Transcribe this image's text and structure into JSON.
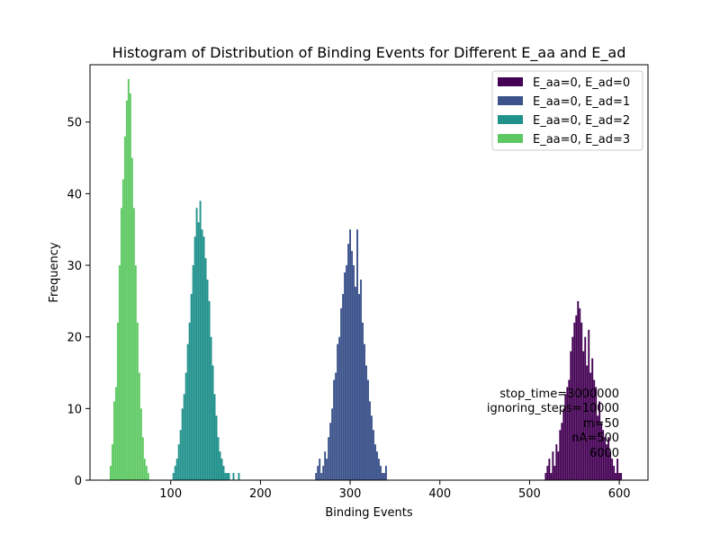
{
  "chart_data": {
    "type": "bar",
    "subtype": "histogram",
    "title": "Histogram of Distribution of Binding Events for Different E_aa and E_ad",
    "xlabel": "Binding Events",
    "ylabel": "Frequency",
    "xlim": [
      10,
      632
    ],
    "ylim": [
      0,
      58
    ],
    "xticks": [
      100,
      200,
      300,
      400,
      500,
      600
    ],
    "yticks": [
      0,
      10,
      20,
      30,
      40,
      50
    ],
    "grid": false,
    "legend_position": "top-right",
    "series": [
      {
        "name": "E_aa=0, E_ad=0",
        "color": "#440154",
        "x": [
          518,
          520,
          522,
          524,
          526,
          528,
          530,
          532,
          534,
          536,
          538,
          540,
          542,
          544,
          546,
          548,
          550,
          552,
          554,
          556,
          558,
          560,
          562,
          564,
          566,
          568,
          570,
          572,
          574,
          576,
          578,
          580,
          582,
          584,
          586,
          588,
          590,
          592,
          594,
          596,
          598,
          600,
          602
        ],
        "values": [
          1,
          2,
          3,
          1,
          4,
          2,
          5,
          4,
          7,
          8,
          10,
          12,
          13,
          14,
          18,
          20,
          22,
          23,
          25,
          24,
          22,
          18,
          20,
          16,
          21,
          15,
          17,
          14,
          13,
          9,
          11,
          8,
          7,
          6,
          5,
          6,
          4,
          3,
          2,
          1,
          3,
          1,
          1
        ]
      },
      {
        "name": "E_aa=0, E_ad=1",
        "color": "#3b528b",
        "x": [
          262,
          264,
          266,
          268,
          270,
          272,
          274,
          276,
          278,
          280,
          282,
          284,
          286,
          288,
          290,
          292,
          294,
          296,
          298,
          300,
          302,
          304,
          306,
          308,
          310,
          312,
          314,
          316,
          318,
          320,
          322,
          324,
          326,
          328,
          330,
          332,
          334,
          336,
          338,
          340
        ],
        "values": [
          1,
          2,
          3,
          1,
          2,
          4,
          3,
          6,
          8,
          10,
          14,
          15,
          19,
          20,
          24,
          26,
          29,
          30,
          33,
          35,
          32,
          30,
          27,
          35,
          26,
          28,
          22,
          19,
          16,
          14,
          11,
          9,
          7,
          5,
          4,
          3,
          2,
          1,
          1,
          2
        ]
      },
      {
        "name": "E_aa=0, E_ad=2",
        "color": "#21918c",
        "x": [
          103,
          105,
          107,
          109,
          111,
          113,
          115,
          117,
          119,
          121,
          123,
          125,
          127,
          129,
          131,
          133,
          135,
          137,
          139,
          141,
          143,
          145,
          147,
          149,
          151,
          153,
          155,
          157,
          159,
          161,
          163,
          165,
          170,
          176
        ],
        "values": [
          1,
          2,
          3,
          5,
          7,
          10,
          12,
          15,
          19,
          22,
          26,
          30,
          34,
          38,
          36,
          39,
          35,
          34,
          31,
          28,
          25,
          20,
          16,
          12,
          9,
          6,
          4,
          3,
          2,
          1,
          1,
          1,
          1,
          1
        ]
      },
      {
        "name": "E_aa=0, E_ad=3",
        "color": "#5ec962",
        "x": [
          33,
          35,
          37,
          39,
          41,
          43,
          45,
          47,
          49,
          51,
          53,
          55,
          57,
          59,
          61,
          63,
          65,
          67,
          69,
          71,
          73,
          75
        ],
        "values": [
          2,
          5,
          11,
          13,
          22,
          30,
          38,
          42,
          48,
          53,
          56,
          54,
          45,
          38,
          30,
          22,
          15,
          10,
          6,
          3,
          2,
          1
        ]
      }
    ],
    "annotations": [
      "stop_time=3000000",
      "ignoring_steps=10000",
      "m=50",
      "nA=500",
      "6000"
    ]
  }
}
